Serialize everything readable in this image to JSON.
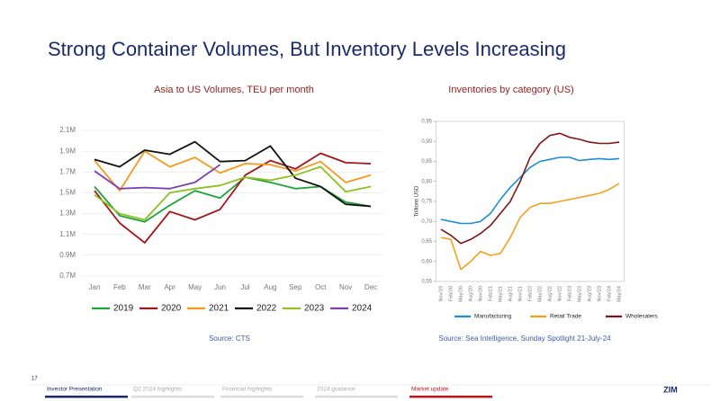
{
  "title": "Strong Container Volumes, But Inventory Levels Increasing",
  "chart_data": [
    {
      "type": "line",
      "title": "Asia to US Volumes, TEU per month",
      "source": "Source: CTS",
      "categories": [
        "Jan",
        "Feb",
        "Mar",
        "Apr",
        "May",
        "Jun",
        "Jul",
        "Aug",
        "Sep",
        "Oct",
        "Nov",
        "Dec"
      ],
      "ylim": [
        0.7,
        2.1
      ],
      "yticks": [
        {
          "value": 0.7,
          "label": "0.7M"
        },
        {
          "value": 0.9,
          "label": "0.9M"
        },
        {
          "value": 1.1,
          "label": "1.1M"
        },
        {
          "value": 1.3,
          "label": "1.3M"
        },
        {
          "value": 1.5,
          "label": "1.5M"
        },
        {
          "value": 1.7,
          "label": "1.7M"
        },
        {
          "value": 1.9,
          "label": "1.9M"
        },
        {
          "value": 2.1,
          "label": "2.1M"
        }
      ],
      "grid": true,
      "legend": "bottom",
      "series": [
        {
          "name": "2019",
          "color": "#1fa43a",
          "values": [
            1.56,
            1.28,
            1.22,
            1.38,
            1.52,
            1.45,
            1.65,
            1.6,
            1.54,
            1.56,
            1.41,
            1.37
          ]
        },
        {
          "name": "2020",
          "color": "#a3161b",
          "values": [
            1.52,
            1.21,
            1.02,
            1.32,
            1.24,
            1.34,
            1.67,
            1.81,
            1.73,
            1.88,
            1.79,
            1.78
          ]
        },
        {
          "name": "2021",
          "color": "#f39a1f",
          "values": [
            1.81,
            1.52,
            1.9,
            1.75,
            1.84,
            1.69,
            1.78,
            1.77,
            1.71,
            1.8,
            1.6,
            1.67
          ]
        },
        {
          "name": "2022",
          "color": "#111111",
          "values": [
            1.82,
            1.75,
            1.91,
            1.87,
            1.99,
            1.8,
            1.81,
            1.95,
            1.64,
            1.56,
            1.39,
            1.37
          ]
        },
        {
          "name": "2023",
          "color": "#8dc21f",
          "values": [
            1.48,
            1.3,
            1.24,
            1.5,
            1.54,
            1.57,
            1.65,
            1.62,
            1.67,
            1.75,
            1.51,
            1.56
          ]
        },
        {
          "name": "2024",
          "color": "#7b3fb0",
          "values": [
            1.71,
            1.54,
            1.55,
            1.54,
            1.6,
            1.77,
            null,
            null,
            null,
            null,
            null,
            null
          ]
        }
      ]
    },
    {
      "type": "line",
      "title": "Inventories by category (US)",
      "source": "Source: Sea Intelligence, Sunday Spotlight 21-July-24",
      "y_label": "Trillions USD",
      "categories": [
        "Nov/19",
        "Feb/20",
        "May/20",
        "Aug/20",
        "Nov/20",
        "Feb/21",
        "May/21",
        "Aug/21",
        "Nov/21",
        "Feb/22",
        "May/22",
        "Aug/22",
        "Nov/22",
        "Feb/23",
        "May/23",
        "Aug/23",
        "Nov/23",
        "Feb/24",
        "May/24"
      ],
      "ylim": [
        0.55,
        0.95
      ],
      "yticks": [
        {
          "value": 0.55,
          "label": "0,55"
        },
        {
          "value": 0.6,
          "label": "0,60"
        },
        {
          "value": 0.65,
          "label": "0,65"
        },
        {
          "value": 0.7,
          "label": "0,70"
        },
        {
          "value": 0.75,
          "label": "0,75"
        },
        {
          "value": 0.8,
          "label": "0,80"
        },
        {
          "value": 0.85,
          "label": "0,85"
        },
        {
          "value": 0.9,
          "label": "0,90"
        },
        {
          "value": 0.95,
          "label": "0,95"
        }
      ],
      "grid": false,
      "legend": "bottom",
      "series": [
        {
          "name": "Manufacturing",
          "color": "#1c8fd0",
          "values": [
            0.705,
            0.7,
            0.695,
            0.695,
            0.7,
            0.72,
            0.755,
            0.785,
            0.81,
            0.835,
            0.85,
            0.855,
            0.86,
            0.86,
            0.852,
            0.855,
            0.857,
            0.855,
            0.857
          ]
        },
        {
          "name": "Retail Trade",
          "color": "#f5a01f",
          "values": [
            0.66,
            0.655,
            0.58,
            0.6,
            0.625,
            0.615,
            0.62,
            0.66,
            0.71,
            0.735,
            0.745,
            0.745,
            0.75,
            0.755,
            0.76,
            0.765,
            0.77,
            0.78,
            0.795
          ]
        },
        {
          "name": "Wholesalers",
          "color": "#7e1416",
          "values": [
            0.68,
            0.665,
            0.645,
            0.655,
            0.67,
            0.69,
            0.72,
            0.75,
            0.8,
            0.86,
            0.895,
            0.915,
            0.92,
            0.91,
            0.905,
            0.898,
            0.895,
            0.895,
            0.898
          ]
        }
      ]
    }
  ],
  "footer": {
    "page": "17",
    "nav": [
      "Investor Presentation",
      "Q2 2024 highlights",
      "Financial highlights",
      "2024 guidance",
      "Market update"
    ],
    "logo": "ZIM"
  }
}
